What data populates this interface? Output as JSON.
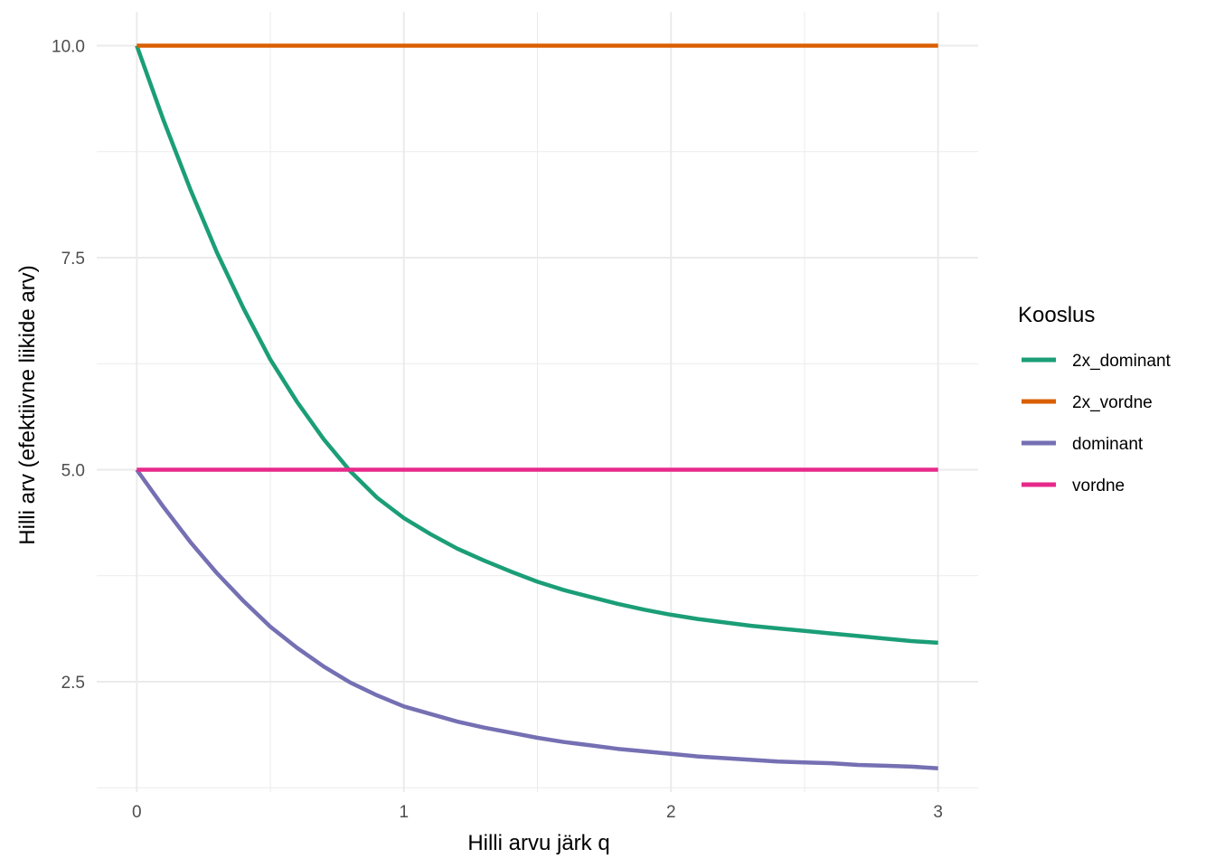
{
  "chart_data": {
    "type": "line",
    "title": "",
    "xlabel": "Hilli arvu järk q",
    "ylabel": "Hilli arv (efektiivne liikide arv)",
    "xlim": [
      -0.15,
      3.15
    ],
    "ylim": [
      1.2,
      10.4
    ],
    "x_ticks": [
      0,
      1,
      2,
      3
    ],
    "x_tick_labels": [
      "0",
      "1",
      "2",
      "3"
    ],
    "y_ticks": [
      2.5,
      5.0,
      7.5,
      10.0
    ],
    "y_tick_labels": [
      "2.5",
      "5.0",
      "7.5",
      "10.0"
    ],
    "x_minor_ticks": [
      0.5,
      1.5,
      2.5
    ],
    "y_minor_ticks": [
      1.25,
      3.75,
      6.25,
      8.75
    ],
    "grid": true,
    "legend": {
      "title": "Kooslus",
      "position": "right"
    },
    "x": [
      0,
      0.1,
      0.2,
      0.3,
      0.4,
      0.5,
      0.6,
      0.7,
      0.8,
      0.9,
      1.0,
      1.1,
      1.2,
      1.3,
      1.4,
      1.5,
      1.6,
      1.7,
      1.8,
      1.9,
      2.0,
      2.1,
      2.2,
      2.3,
      2.4,
      2.5,
      2.6,
      2.7,
      2.8,
      2.9,
      3.0
    ],
    "series": [
      {
        "name": "2x_dominant",
        "color": "#1B9E77",
        "values": [
          10.0,
          9.12,
          8.31,
          7.56,
          6.9,
          6.3,
          5.8,
          5.36,
          4.98,
          4.67,
          4.43,
          4.24,
          4.07,
          3.93,
          3.8,
          3.68,
          3.58,
          3.5,
          3.42,
          3.35,
          3.29,
          3.24,
          3.2,
          3.16,
          3.13,
          3.1,
          3.07,
          3.04,
          3.01,
          2.98,
          2.96
        ]
      },
      {
        "name": "2x_vordne",
        "color": "#D95F02",
        "values": [
          10.0,
          10.0,
          10.0,
          10.0,
          10.0,
          10.0,
          10.0,
          10.0,
          10.0,
          10.0,
          10.0,
          10.0,
          10.0,
          10.0,
          10.0,
          10.0,
          10.0,
          10.0,
          10.0,
          10.0,
          10.0,
          10.0,
          10.0,
          10.0,
          10.0,
          10.0,
          10.0,
          10.0,
          10.0,
          10.0,
          10.0
        ]
      },
      {
        "name": "dominant",
        "color": "#7570B3",
        "values": [
          5.0,
          4.56,
          4.15,
          3.78,
          3.45,
          3.15,
          2.9,
          2.68,
          2.49,
          2.34,
          2.21,
          2.12,
          2.03,
          1.96,
          1.9,
          1.84,
          1.79,
          1.75,
          1.71,
          1.68,
          1.65,
          1.62,
          1.6,
          1.58,
          1.56,
          1.55,
          1.54,
          1.52,
          1.51,
          1.5,
          1.48
        ]
      },
      {
        "name": "vordne",
        "color": "#E7298A",
        "values": [
          5.0,
          5.0,
          5.0,
          5.0,
          5.0,
          5.0,
          5.0,
          5.0,
          5.0,
          5.0,
          5.0,
          5.0,
          5.0,
          5.0,
          5.0,
          5.0,
          5.0,
          5.0,
          5.0,
          5.0,
          5.0,
          5.0,
          5.0,
          5.0,
          5.0,
          5.0,
          5.0,
          5.0,
          5.0,
          5.0,
          5.0
        ]
      }
    ]
  }
}
